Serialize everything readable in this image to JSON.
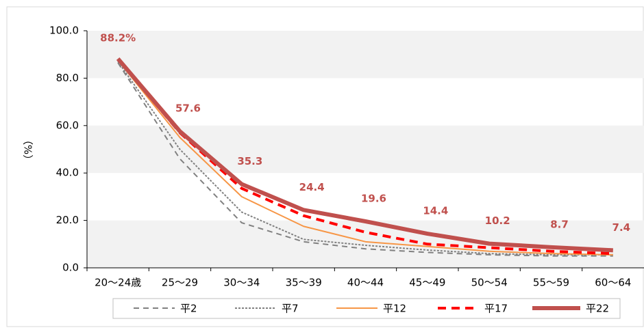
{
  "chart_data": {
    "type": "line",
    "y_label": "（%）",
    "categories": [
      "20～24歳",
      "25～29",
      "30～34",
      "35～39",
      "40～44",
      "45～49",
      "50～54",
      "55～59",
      "60～64"
    ],
    "ylim": [
      0,
      100
    ],
    "yticks": [
      {
        "value": 0,
        "label": "0.0"
      },
      {
        "value": 20,
        "label": "20.0"
      },
      {
        "value": 40,
        "label": "40.0"
      },
      {
        "value": 60,
        "label": "60.0"
      },
      {
        "value": 80,
        "label": "80.0"
      },
      {
        "value": 100,
        "label": "100.0"
      }
    ],
    "series": [
      {
        "name": "平2",
        "color": "#808080",
        "dash": "8,6",
        "width": 2,
        "values": [
          86.5,
          46,
          19,
          11,
          8,
          6.5,
          5.5,
          5,
          5
        ]
      },
      {
        "name": "平7",
        "color": "#808080",
        "dash": "3,2",
        "width": 2,
        "values": [
          87,
          50,
          23.5,
          12,
          9.5,
          7.5,
          6,
          5.5,
          5.5
        ]
      },
      {
        "name": "平12",
        "color": "#f79646",
        "dash": "",
        "width": 2,
        "values": [
          87.5,
          55,
          30,
          17.5,
          11,
          9,
          7,
          6,
          5.5
        ]
      },
      {
        "name": "平17",
        "color": "#ff0000",
        "dash": "12,8",
        "width": 4,
        "values": [
          88,
          57,
          33.5,
          22,
          15,
          10,
          8.5,
          7,
          6
        ]
      },
      {
        "name": "平22",
        "color": "#c0504d",
        "dash": "",
        "width": 6,
        "values": [
          88.2,
          57.6,
          35.3,
          24.4,
          19.6,
          14.4,
          10.2,
          8.7,
          7.4
        ],
        "value_labels": [
          "88.2%",
          "57.6",
          "35.3",
          "24.4",
          "19.6",
          "14.4",
          "10.2",
          "8.7",
          "7.4"
        ]
      }
    ]
  }
}
